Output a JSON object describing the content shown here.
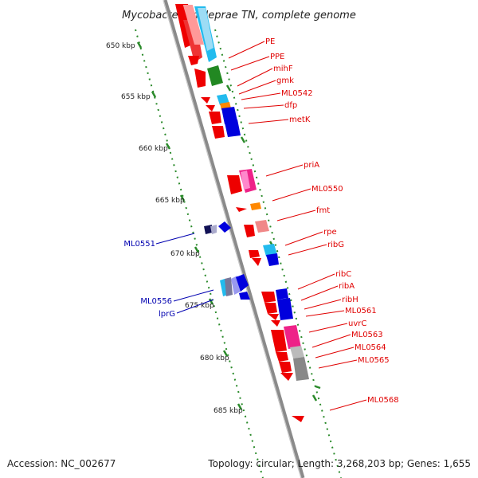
{
  "title": "Mycobacterium leprae TN, complete genome",
  "footer": {
    "accession": "Accession: NC_002677",
    "topology": "Topology: circular; Length: 3,268,203 bp; Genes: 1,655"
  },
  "colors": {
    "backbone": "#8a8a8a",
    "tick_dot": "#2a8a2a",
    "red": "#ee0000",
    "blue_dark": "#0000dd",
    "cyan": "#22bbee",
    "green": "#228822",
    "orange": "#ff8800",
    "magenta": "#ee2288",
    "pink": "#f08888",
    "gray": "#888888",
    "label_red": "#e00000",
    "label_blue": "#0000b0"
  },
  "kbp_labels": [
    "650 kbp",
    "655 kbp",
    "660 kbp",
    "665 kbp",
    "670 kbp",
    "675 kbp",
    "680 kbp",
    "685 kbp"
  ],
  "gene_labels_right": [
    "PE",
    "PPE",
    "mihF",
    "gmk",
    "ML0542",
    "dfp",
    "metK",
    "priA",
    "ML0550",
    "fmt",
    "rpe",
    "ribG",
    "ribC",
    "ribA",
    "ribH",
    "ML0561",
    "uvrC",
    "ML0563",
    "ML0564",
    "ML0565",
    "ML0568"
  ],
  "gene_labels_left": [
    "ML0551",
    "ML0556",
    "lprG"
  ]
}
